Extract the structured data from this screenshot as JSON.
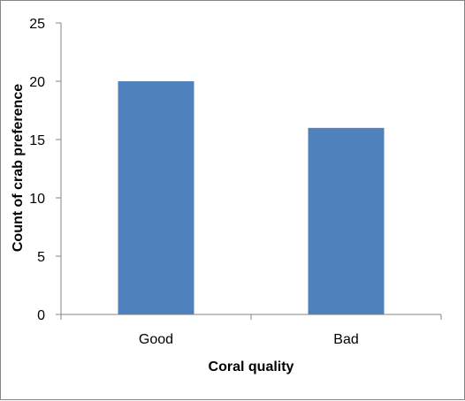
{
  "chart_data": {
    "type": "bar",
    "title": "",
    "categories": [
      "Good",
      "Bad"
    ],
    "series": [
      {
        "values": [
          20,
          16
        ],
        "color": "#4F81BD"
      }
    ],
    "xlabel": "Coral quality",
    "ylabel": "Count  of crab preference",
    "ylim": [
      0,
      25
    ],
    "yticks": [
      0,
      5,
      10,
      15,
      20,
      25
    ],
    "grid": false,
    "legend": "none"
  }
}
